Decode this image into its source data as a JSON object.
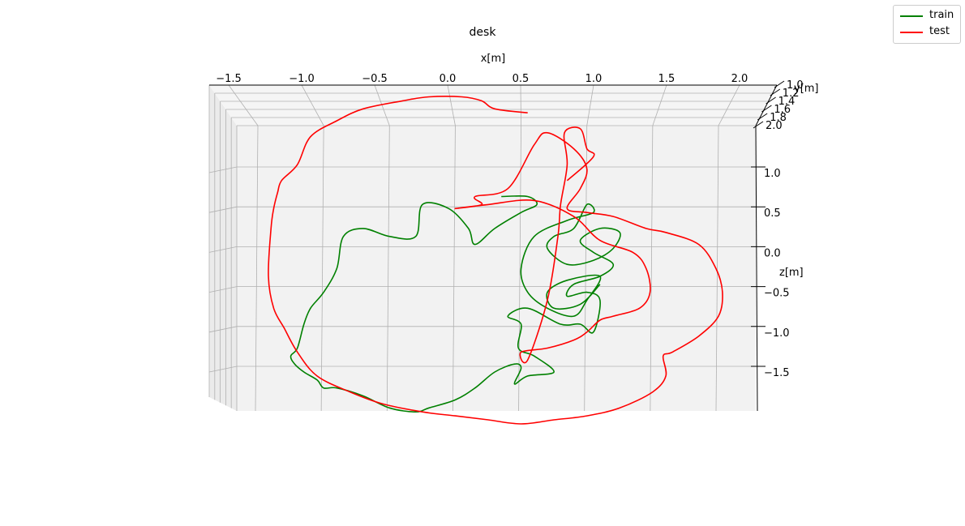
{
  "chart_data": {
    "type": "line",
    "projection": "3d",
    "title": "desk",
    "xlabel": "x[m]",
    "ylabel": "y[m]",
    "zlabel": "z[m]",
    "x_ticks": [
      "−1.5",
      "−1.0",
      "−0.5",
      "0.0",
      "0.5",
      "1.0",
      "1.5",
      "2.0"
    ],
    "y_ticks": [
      "1.0",
      "1.2",
      "1.4",
      "1.6",
      "1.8",
      "2.0"
    ],
    "z_ticks": [
      "1.0",
      "0.5",
      "0.0",
      "−0.5",
      "−1.0",
      "−1.5"
    ],
    "grid": true,
    "legend_position": "top-right",
    "series": [
      {
        "name": "train",
        "color": "#008000",
        "x": [
          0.35,
          0.55,
          0.62,
          0.5,
          0.3,
          0.15,
          0.1,
          -0.05,
          -0.25,
          -0.3,
          -0.5,
          -0.7,
          -0.85,
          -0.9,
          -1.0,
          -1.1,
          -1.15,
          -1.2,
          -1.25,
          -1.22,
          -1.15,
          -1.05,
          -1.0,
          -0.9,
          -0.7,
          -0.5,
          -0.3,
          -0.2,
          0.0,
          0.15,
          0.3,
          0.45,
          0.5,
          0.45,
          0.55,
          0.75,
          0.6,
          0.48,
          0.5,
          0.4,
          0.55,
          0.8,
          0.95,
          1.05,
          1.1,
          1.0,
          0.85,
          0.9,
          1.1,
          1.2,
          1.05,
          0.95,
          1.1,
          1.25,
          1.2,
          1.05,
          0.85,
          0.7,
          0.75,
          0.9,
          1.0,
          1.05,
          0.85,
          0.6,
          0.5,
          0.55,
          0.7,
          0.9,
          1.0,
          1.1,
          0.85,
          0.7,
          0.75,
          0.95,
          1.1
        ],
        "z": [
          0.7,
          0.7,
          0.6,
          0.5,
          0.3,
          0.1,
          0.3,
          0.55,
          0.6,
          0.2,
          0.2,
          0.3,
          0.2,
          -0.2,
          -0.5,
          -0.7,
          -0.9,
          -1.2,
          -1.3,
          -1.4,
          -1.5,
          -1.6,
          -1.7,
          -1.7,
          -1.8,
          -1.95,
          -2.0,
          -1.95,
          -1.85,
          -1.7,
          -1.5,
          -1.4,
          -1.45,
          -1.65,
          -1.55,
          -1.5,
          -1.3,
          -1.2,
          -0.9,
          -0.8,
          -0.7,
          -0.9,
          -0.9,
          -1.0,
          -0.6,
          -0.5,
          -0.55,
          -0.4,
          -0.3,
          -0.15,
          0.0,
          0.15,
          0.3,
          0.25,
          0.05,
          -0.1,
          -0.15,
          0.05,
          0.2,
          0.3,
          0.6,
          0.5,
          0.4,
          0.2,
          -0.2,
          -0.5,
          -0.7,
          -0.8,
          -0.6,
          -0.3,
          -0.35,
          -0.5,
          -0.7,
          -0.65,
          -0.4
        ]
      },
      {
        "name": "test",
        "color": "#ff0000",
        "x": [
          0.55,
          0.3,
          0.2,
          0.05,
          -0.2,
          -0.4,
          -0.7,
          -0.9,
          -1.1,
          -1.2,
          -1.32,
          -1.35,
          -1.38,
          -1.4,
          -1.42,
          -1.38,
          -1.3,
          -1.2,
          -1.05,
          -0.8,
          -0.55,
          -0.25,
          0.0,
          0.25,
          0.5,
          0.75,
          1.0,
          1.25,
          1.5,
          1.6,
          1.58,
          1.65,
          1.85,
          2.0,
          2.03,
          1.98,
          1.85,
          1.6,
          1.45,
          1.2,
          1.0,
          0.85,
          0.95,
          1.0,
          0.9,
          0.7,
          0.6,
          0.4,
          0.15,
          0.2,
          0.0,
          0.25,
          0.6,
          0.9,
          1.1,
          1.35,
          1.45,
          1.48,
          1.4,
          1.2,
          1.1,
          1.0,
          0.9,
          0.7,
          0.5,
          0.55,
          0.7,
          0.78,
          0.8,
          0.85,
          0.83,
          0.95,
          1.0,
          1.05,
          0.85
        ],
        "z": [
          1.75,
          1.8,
          1.9,
          1.95,
          1.95,
          1.9,
          1.8,
          1.65,
          1.45,
          1.1,
          0.9,
          0.75,
          0.55,
          0.3,
          -0.3,
          -0.7,
          -0.95,
          -1.25,
          -1.55,
          -1.75,
          -1.9,
          -2.0,
          -2.05,
          -2.1,
          -2.15,
          -2.1,
          -2.05,
          -1.95,
          -1.75,
          -1.55,
          -1.3,
          -1.25,
          -1.05,
          -0.8,
          -0.5,
          -0.2,
          0.1,
          0.25,
          0.3,
          0.45,
          0.5,
          0.55,
          0.8,
          1.05,
          1.3,
          1.5,
          1.35,
          0.8,
          0.7,
          0.6,
          0.55,
          0.6,
          0.65,
          0.45,
          0.15,
          0.0,
          -0.2,
          -0.5,
          -0.7,
          -0.8,
          -0.85,
          -1.0,
          -1.1,
          -1.2,
          -1.25,
          -1.35,
          -0.6,
          0.2,
          0.6,
          1.1,
          1.5,
          1.55,
          1.3,
          1.2,
          0.9
        ]
      }
    ]
  }
}
